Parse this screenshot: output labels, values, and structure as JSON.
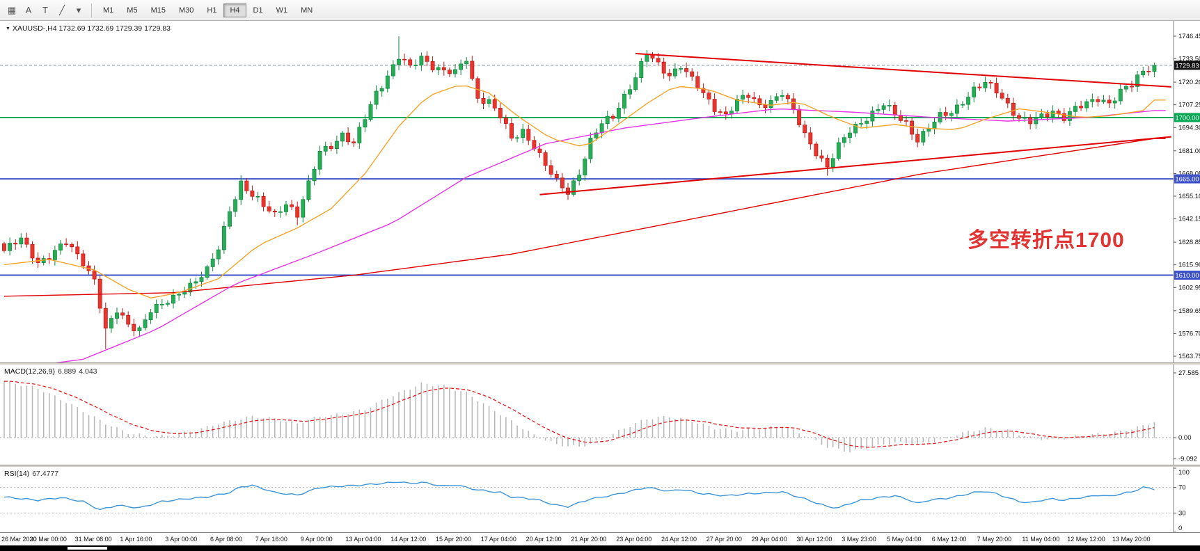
{
  "toolbar": {
    "icons": [
      {
        "name": "chart-shift-icon",
        "glyph": "▦"
      },
      {
        "name": "annotation-a-icon",
        "glyph": "A"
      },
      {
        "name": "text-tool-icon",
        "glyph": "T"
      },
      {
        "name": "trendline-tool-icon",
        "glyph": "╱"
      },
      {
        "name": "dropdown-chevron-icon",
        "glyph": "▾"
      }
    ],
    "timeframes": [
      "M1",
      "M5",
      "M15",
      "M30",
      "H1",
      "H4",
      "D1",
      "W1",
      "MN"
    ],
    "active_timeframe": "H4"
  },
  "chart": {
    "collapse_icon": "▼",
    "symbol_line": "XAUUSD-,H4  1732.69 1732.69 1729.39 1729.83",
    "annotation": "多空转折点1700",
    "current_price": 1729.83,
    "price_axis": [
      1746.45,
      1733.5,
      1720.2,
      1707.25,
      1694.3,
      1681.0,
      1668.05,
      1655.1,
      1642.15,
      1628.85,
      1615.9,
      1602.95,
      1589.65,
      1576.7,
      1563.75
    ],
    "hlines": [
      {
        "price": 1700.0,
        "label": "1700.00",
        "color": "#00a651",
        "width": 1.8
      },
      {
        "price": 1665.0,
        "label": "1665.00",
        "color": "#3c50c8",
        "width": 2
      },
      {
        "price": 1610.0,
        "label": "1610.00",
        "color": "#3c50c8",
        "width": 2
      }
    ]
  },
  "chart_data": {
    "type": "candlestick",
    "symbol": "XAUUSD-",
    "timeframe": "H4",
    "ohlc_display": {
      "open": "1732.69",
      "high": "1732.69",
      "low": "1729.39",
      "close": "1729.83"
    },
    "y_range": [
      1563.75,
      1746.45
    ],
    "n_candles": 205,
    "candles_per_label": 8,
    "last_close": 1729.83,
    "x_labels": [
      "26 Mar 2020",
      "30 Mar 00:00",
      "31 Mar 08:00",
      "1 Apr 16:00",
      "3 Apr 00:00",
      "6 Apr 08:00",
      "7 Apr 16:00",
      "9 Apr 00:00",
      "13 Apr 04:00",
      "14 Apr 12:00",
      "15 Apr 20:00",
      "17 Apr 04:00",
      "20 Apr 12:00",
      "21 Apr 20:00",
      "23 Apr 04:00",
      "24 Apr 12:00",
      "27 Apr 20:00",
      "29 Apr 04:00",
      "30 Apr 12:00",
      "3 May 23:00",
      "5 May 04:00",
      "6 May 12:00",
      "7 May 20:00",
      "11 May 04:00",
      "12 May 12:00",
      "13 May 20:00"
    ],
    "close_anchors": [
      [
        0,
        1624
      ],
      [
        3,
        1630
      ],
      [
        6,
        1618
      ],
      [
        8,
        1621
      ],
      [
        11,
        1628
      ],
      [
        14,
        1618
      ],
      [
        16,
        1608
      ],
      [
        18,
        1578
      ],
      [
        20,
        1589
      ],
      [
        22,
        1582
      ],
      [
        24,
        1580
      ],
      [
        26,
        1590
      ],
      [
        28,
        1592
      ],
      [
        30,
        1597
      ],
      [
        32,
        1603
      ],
      [
        34,
        1607
      ],
      [
        36,
        1612
      ],
      [
        38,
        1625
      ],
      [
        40,
        1648
      ],
      [
        42,
        1663
      ],
      [
        44,
        1655
      ],
      [
        46,
        1649
      ],
      [
        48,
        1645
      ],
      [
        50,
        1652
      ],
      [
        52,
        1644
      ],
      [
        54,
        1661
      ],
      [
        56,
        1681
      ],
      [
        58,
        1685
      ],
      [
        60,
        1690
      ],
      [
        62,
        1684
      ],
      [
        64,
        1700
      ],
      [
        66,
        1715
      ],
      [
        68,
        1724
      ],
      [
        70,
        1734
      ],
      [
        72,
        1728
      ],
      [
        74,
        1735
      ],
      [
        76,
        1730
      ],
      [
        78,
        1726
      ],
      [
        80,
        1725
      ],
      [
        82,
        1734
      ],
      [
        83,
        1722
      ],
      [
        84,
        1712
      ],
      [
        86,
        1709
      ],
      [
        88,
        1700
      ],
      [
        90,
        1688
      ],
      [
        92,
        1693
      ],
      [
        94,
        1684
      ],
      [
        96,
        1672
      ],
      [
        98,
        1663
      ],
      [
        100,
        1658
      ],
      [
        102,
        1669
      ],
      [
        104,
        1686
      ],
      [
        106,
        1696
      ],
      [
        108,
        1701
      ],
      [
        110,
        1713
      ],
      [
        112,
        1723
      ],
      [
        114,
        1736
      ],
      [
        116,
        1730
      ],
      [
        118,
        1725
      ],
      [
        120,
        1730
      ],
      [
        122,
        1721
      ],
      [
        124,
        1713
      ],
      [
        126,
        1706
      ],
      [
        128,
        1702
      ],
      [
        130,
        1709
      ],
      [
        132,
        1712
      ],
      [
        134,
        1707
      ],
      [
        136,
        1710
      ],
      [
        138,
        1714
      ],
      [
        140,
        1703
      ],
      [
        142,
        1690
      ],
      [
        144,
        1681
      ],
      [
        146,
        1672
      ],
      [
        148,
        1683
      ],
      [
        150,
        1692
      ],
      [
        152,
        1698
      ],
      [
        154,
        1703
      ],
      [
        156,
        1707
      ],
      [
        158,
        1701
      ],
      [
        160,
        1697
      ],
      [
        162,
        1688
      ],
      [
        164,
        1694
      ],
      [
        166,
        1700
      ],
      [
        168,
        1703
      ],
      [
        170,
        1710
      ],
      [
        172,
        1716
      ],
      [
        174,
        1719
      ],
      [
        176,
        1715
      ],
      [
        178,
        1708
      ],
      [
        180,
        1700
      ],
      [
        182,
        1697
      ],
      [
        184,
        1700
      ],
      [
        186,
        1704
      ],
      [
        188,
        1701
      ],
      [
        190,
        1705
      ],
      [
        192,
        1707
      ],
      [
        194,
        1711
      ],
      [
        196,
        1709
      ],
      [
        198,
        1715
      ],
      [
        200,
        1718
      ],
      [
        202,
        1726
      ],
      [
        204,
        1731
      ]
    ],
    "spikes": [
      {
        "i": 18,
        "low": 1567.8
      },
      {
        "i": 52,
        "low": 1638.5
      },
      {
        "i": 70,
        "high": 1746.4
      },
      {
        "i": 100,
        "low": 1653.0
      },
      {
        "i": 114,
        "high": 1738.5
      },
      {
        "i": 146,
        "low": 1666.8
      },
      {
        "i": 162,
        "low": 1683.0
      }
    ],
    "ma_orange": [
      [
        0,
        1616
      ],
      [
        8,
        1619
      ],
      [
        16,
        1613
      ],
      [
        22,
        1602
      ],
      [
        26,
        1597
      ],
      [
        31,
        1600
      ],
      [
        38,
        1608
      ],
      [
        45,
        1627
      ],
      [
        52,
        1637
      ],
      [
        58,
        1648
      ],
      [
        64,
        1668
      ],
      [
        70,
        1695
      ],
      [
        75,
        1712
      ],
      [
        81,
        1719
      ],
      [
        86,
        1714
      ],
      [
        91,
        1701
      ],
      [
        97,
        1688
      ],
      [
        103,
        1683
      ],
      [
        108,
        1694
      ],
      [
        114,
        1708
      ],
      [
        119,
        1718
      ],
      [
        125,
        1716
      ],
      [
        130,
        1710
      ],
      [
        136,
        1707
      ],
      [
        141,
        1709
      ],
      [
        147,
        1700
      ],
      [
        152,
        1694
      ],
      [
        158,
        1696
      ],
      [
        163,
        1694
      ],
      [
        169,
        1693
      ],
      [
        174,
        1699
      ],
      [
        180,
        1705
      ],
      [
        185,
        1703
      ],
      [
        191,
        1700
      ],
      [
        196,
        1701
      ],
      [
        202,
        1704
      ],
      [
        204,
        1710
      ]
    ],
    "ma_magenta": [
      [
        0,
        1556
      ],
      [
        14,
        1562
      ],
      [
        27,
        1579
      ],
      [
        41,
        1605
      ],
      [
        55,
        1622
      ],
      [
        69,
        1640
      ],
      [
        82,
        1666
      ],
      [
        96,
        1685
      ],
      [
        110,
        1694
      ],
      [
        124,
        1700
      ],
      [
        137,
        1705
      ],
      [
        151,
        1703
      ],
      [
        165,
        1700
      ],
      [
        178,
        1698
      ],
      [
        192,
        1700
      ],
      [
        204,
        1704
      ]
    ],
    "ma_red": [
      [
        0,
        1598
      ],
      [
        30,
        1600
      ],
      [
        62,
        1610
      ],
      [
        90,
        1622
      ],
      [
        125,
        1644
      ],
      [
        163,
        1668
      ],
      [
        204,
        1688
      ]
    ],
    "trendlines": [
      {
        "from": [
          112,
          1736.5
        ],
        "to": [
          207,
          1717.5
        ],
        "color": "#e00000"
      },
      {
        "from": [
          95,
          1656.0
        ],
        "to": [
          207,
          1689.0
        ],
        "color": "#e00000"
      }
    ],
    "colors": {
      "up_fill": "#2aab58",
      "up_stroke": "#0d8a3c",
      "down_fill": "#e8352e",
      "down_stroke": "#c01713",
      "ma_fast": "#f4a428",
      "ma_mid": "#e535e5",
      "ma_slow": "#e00000",
      "rsi_line": "#3f95d8",
      "macd_hist": "#b9b9b9",
      "macd_signal": "#e02020"
    },
    "macd": {
      "title": "MACD(12,26,9)",
      "main_value": "6.889",
      "signal_value": "4.043",
      "axis": [
        {
          "v": 27.585,
          "t": "27.585"
        },
        {
          "v": 0,
          "t": "0.00"
        },
        {
          "v": -9.092,
          "t": "-9.092"
        }
      ],
      "anchors": [
        [
          0,
          24
        ],
        [
          6,
          21
        ],
        [
          12,
          14
        ],
        [
          18,
          6
        ],
        [
          22,
          2
        ],
        [
          26,
          0.5
        ],
        [
          30,
          1
        ],
        [
          34,
          3
        ],
        [
          38,
          6
        ],
        [
          44,
          9
        ],
        [
          48,
          8
        ],
        [
          52,
          6
        ],
        [
          56,
          9
        ],
        [
          60,
          10
        ],
        [
          64,
          12
        ],
        [
          68,
          17
        ],
        [
          72,
          21
        ],
        [
          74,
          23
        ],
        [
          78,
          22
        ],
        [
          82,
          19
        ],
        [
          86,
          13
        ],
        [
          90,
          7
        ],
        [
          94,
          1
        ],
        [
          98,
          -3
        ],
        [
          102,
          -4
        ],
        [
          106,
          -1
        ],
        [
          110,
          4
        ],
        [
          114,
          8
        ],
        [
          118,
          9
        ],
        [
          122,
          7
        ],
        [
          126,
          4
        ],
        [
          130,
          3
        ],
        [
          134,
          4
        ],
        [
          138,
          5
        ],
        [
          142,
          1
        ],
        [
          146,
          -4
        ],
        [
          150,
          -6
        ],
        [
          154,
          -4
        ],
        [
          158,
          -2
        ],
        [
          162,
          -3
        ],
        [
          166,
          -1
        ],
        [
          170,
          2
        ],
        [
          174,
          4
        ],
        [
          178,
          3
        ],
        [
          182,
          0
        ],
        [
          186,
          -1
        ],
        [
          190,
          0.5
        ],
        [
          194,
          1.5
        ],
        [
          198,
          2.5
        ],
        [
          202,
          5
        ],
        [
          204,
          6.889
        ]
      ]
    },
    "rsi": {
      "title": "RSI(14)",
      "value_text": "67.4777",
      "levels": [
        70,
        30
      ],
      "axis": [
        {
          "v": 100,
          "t": "100"
        },
        {
          "v": 70,
          "t": "70"
        },
        {
          "v": 30,
          "t": "30"
        },
        {
          "v": 0,
          "t": "0"
        }
      ],
      "anchors": [
        [
          0,
          55
        ],
        [
          6,
          50
        ],
        [
          10,
          54
        ],
        [
          14,
          48
        ],
        [
          17,
          35
        ],
        [
          20,
          42
        ],
        [
          24,
          38
        ],
        [
          28,
          48
        ],
        [
          32,
          52
        ],
        [
          36,
          55
        ],
        [
          40,
          62
        ],
        [
          42,
          71
        ],
        [
          44,
          73
        ],
        [
          46,
          68
        ],
        [
          48,
          62
        ],
        [
          52,
          58
        ],
        [
          56,
          70
        ],
        [
          60,
          72
        ],
        [
          64,
          74
        ],
        [
          68,
          77
        ],
        [
          70,
          79
        ],
        [
          72,
          76
        ],
        [
          74,
          78
        ],
        [
          78,
          72
        ],
        [
          80,
          74
        ],
        [
          84,
          66
        ],
        [
          88,
          62
        ],
        [
          90,
          55
        ],
        [
          94,
          52
        ],
        [
          98,
          42
        ],
        [
          100,
          40
        ],
        [
          102,
          46
        ],
        [
          104,
          52
        ],
        [
          106,
          55
        ],
        [
          108,
          58
        ],
        [
          110,
          62
        ],
        [
          112,
          66
        ],
        [
          114,
          70
        ],
        [
          116,
          67
        ],
        [
          118,
          64
        ],
        [
          120,
          67
        ],
        [
          124,
          60
        ],
        [
          128,
          57
        ],
        [
          132,
          60
        ],
        [
          136,
          62
        ],
        [
          138,
          63
        ],
        [
          142,
          52
        ],
        [
          146,
          40
        ],
        [
          148,
          38
        ],
        [
          150,
          45
        ],
        [
          152,
          50
        ],
        [
          156,
          55
        ],
        [
          158,
          57
        ],
        [
          160,
          52
        ],
        [
          162,
          45
        ],
        [
          164,
          50
        ],
        [
          168,
          54
        ],
        [
          170,
          58
        ],
        [
          172,
          62
        ],
        [
          174,
          64
        ],
        [
          176,
          60
        ],
        [
          178,
          54
        ],
        [
          180,
          48
        ],
        [
          182,
          46
        ],
        [
          184,
          50
        ],
        [
          186,
          52
        ],
        [
          188,
          50
        ],
        [
          190,
          53
        ],
        [
          192,
          55
        ],
        [
          194,
          58
        ],
        [
          196,
          56
        ],
        [
          198,
          60
        ],
        [
          200,
          63
        ],
        [
          202,
          70
        ],
        [
          204,
          67.48
        ]
      ]
    }
  }
}
